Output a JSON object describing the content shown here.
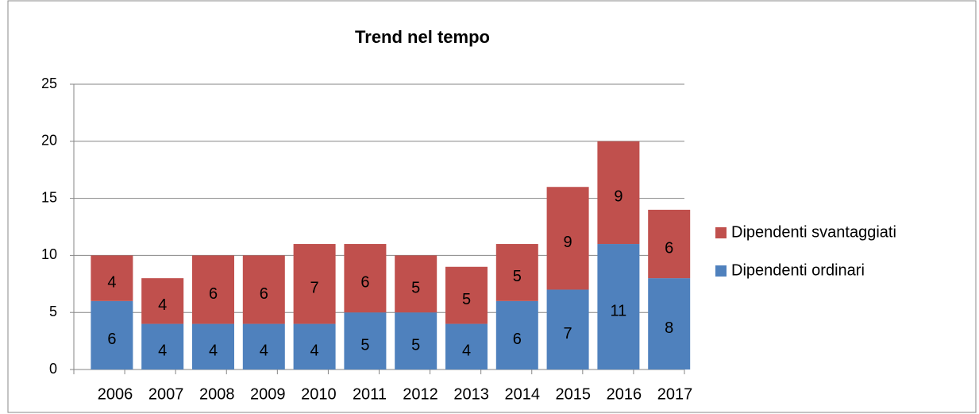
{
  "chart_data": {
    "type": "stacked_bar",
    "title": "Trend nel tempo",
    "categories": [
      "2006",
      "2007",
      "2008",
      "2009",
      "2010",
      "2011",
      "2012",
      "2013",
      "2014",
      "2015",
      "2016",
      "2017"
    ],
    "series": [
      {
        "name": "Dipendenti ordinari",
        "color": "#4f81bd",
        "values": [
          6,
          4,
          4,
          4,
          4,
          5,
          5,
          4,
          6,
          7,
          11,
          8
        ]
      },
      {
        "name": "Dipendenti svantaggiati",
        "color": "#c0504d",
        "values": [
          4,
          4,
          6,
          6,
          7,
          6,
          5,
          5,
          5,
          9,
          9,
          6
        ]
      }
    ],
    "ylim": [
      0,
      25
    ],
    "yticks": [
      0,
      5,
      10,
      15,
      20,
      25
    ],
    "grid": true,
    "legend": "right"
  }
}
